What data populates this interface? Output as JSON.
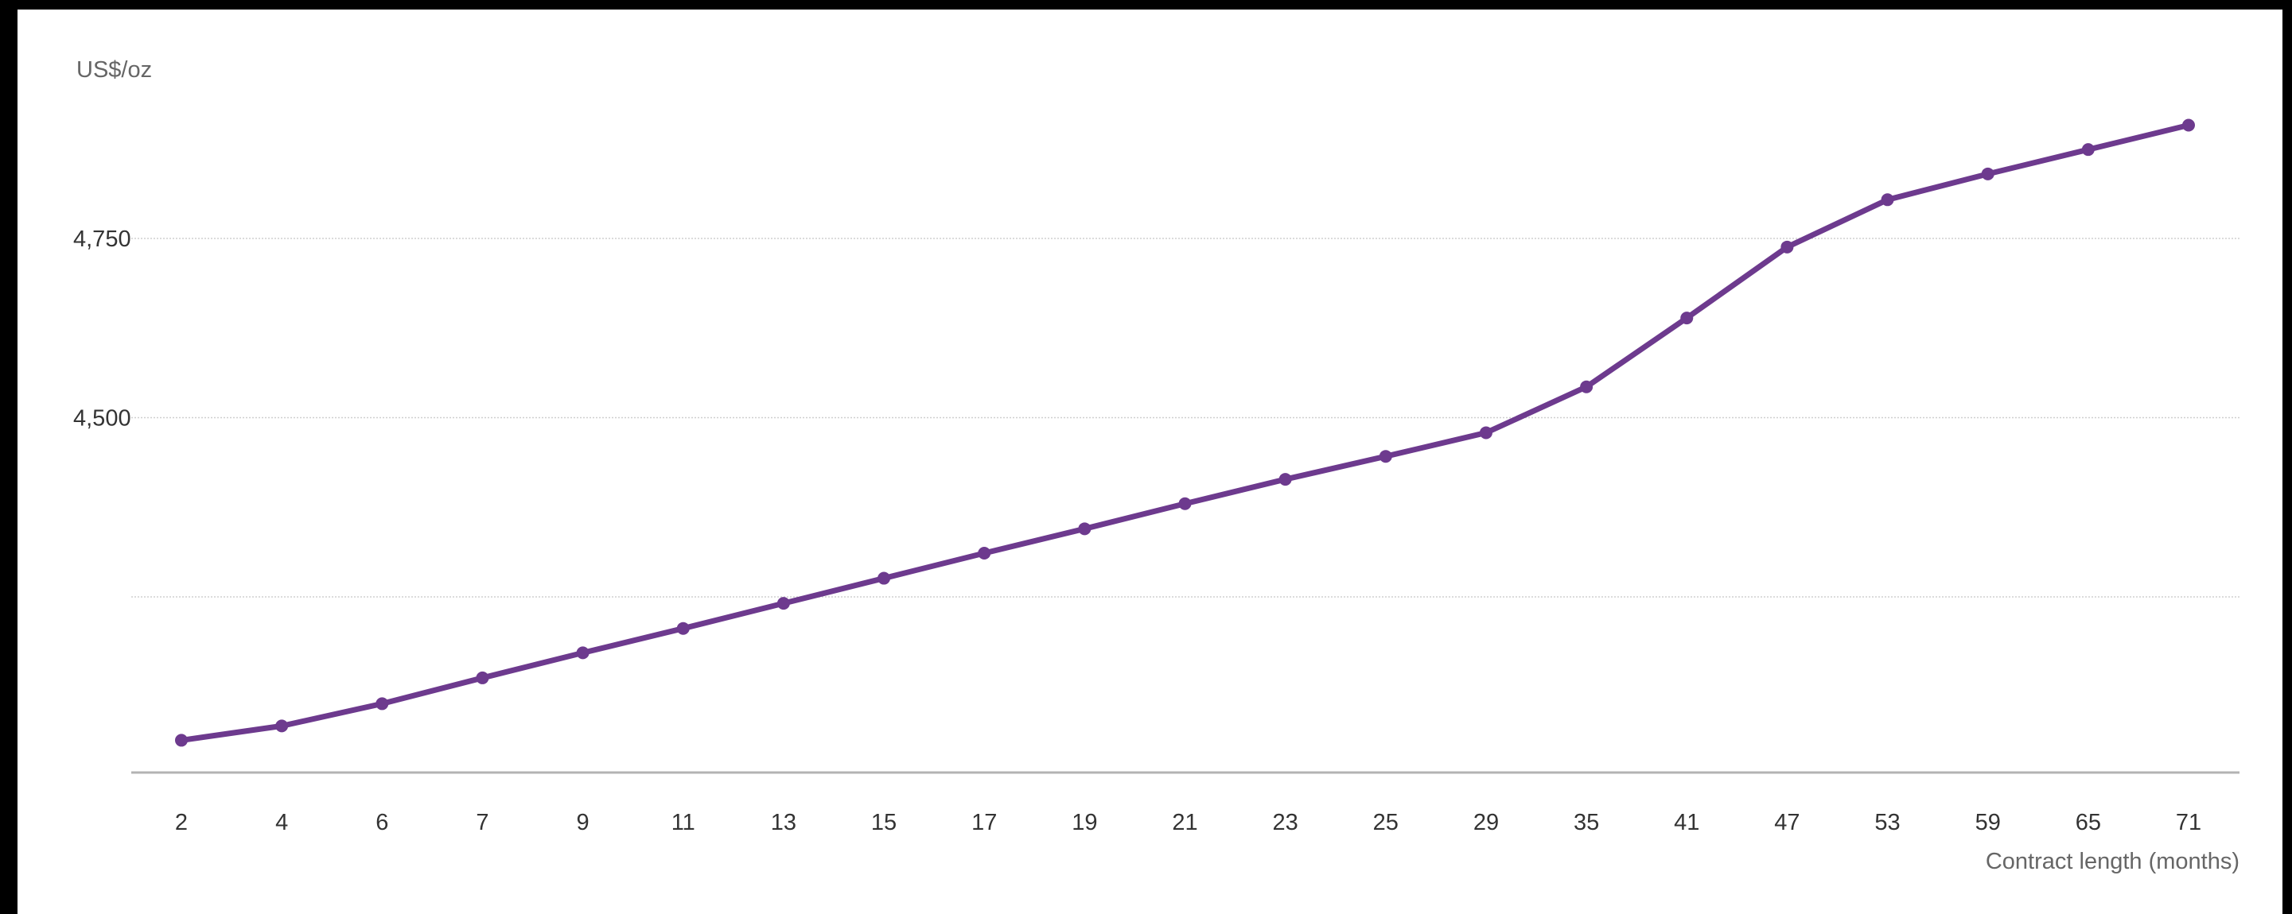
{
  "chart_data": {
    "type": "line",
    "title": "",
    "ylabel": "US$/oz",
    "xlabel": "Contract length (months)",
    "categories": [
      "2",
      "4",
      "6",
      "7",
      "9",
      "11",
      "13",
      "15",
      "17",
      "19",
      "21",
      "23",
      "25",
      "29",
      "35",
      "41",
      "47",
      "53",
      "59",
      "65",
      "71"
    ],
    "series": [
      {
        "values": [
          4050,
          4070,
          4101,
          4137,
          4172,
          4206,
          4241,
          4276,
          4311,
          4345,
          4380,
          4414,
          4446,
          4479,
          4543,
          4639,
          4738,
          4804,
          4840,
          4874,
          4908
        ]
      }
    ],
    "ylim": [
      4005,
      5005
    ],
    "yticks": [
      4250,
      4500,
      4750
    ],
    "ytick_labels": [
      "",
      "4,500",
      "4,750"
    ],
    "grid": true,
    "legend": "none",
    "colors": {
      "line": "#6d3a8e",
      "grid": "#cfcfcf",
      "baseline": "#b3b3b3",
      "text": "#333333"
    }
  }
}
